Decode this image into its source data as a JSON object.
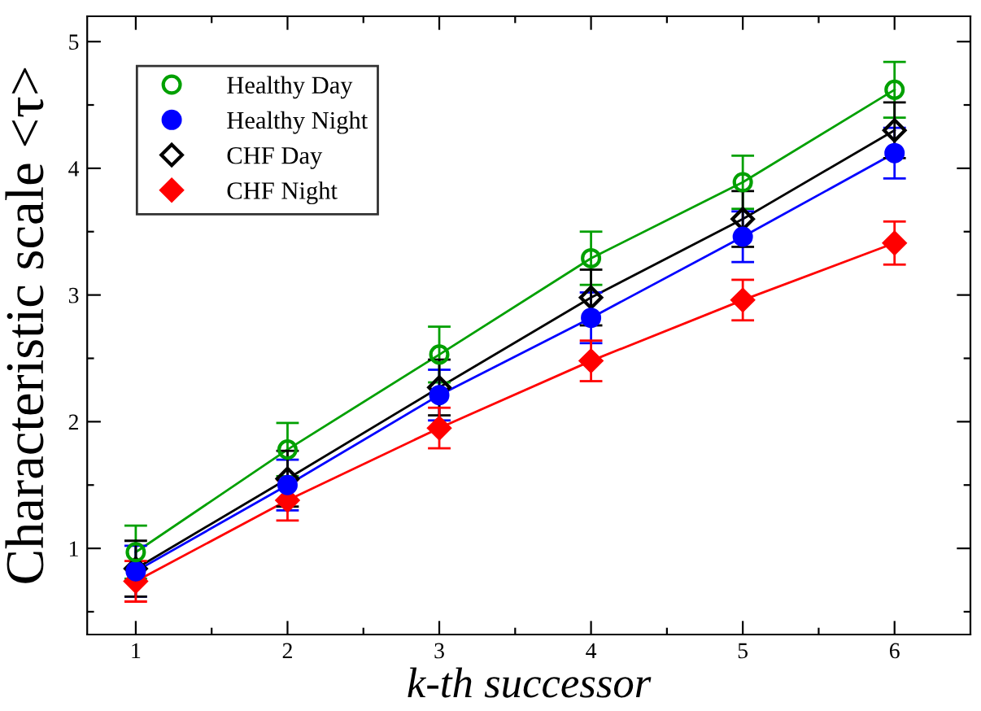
{
  "chart_data": {
    "type": "line",
    "xlabel": "k-th successor",
    "ylabel": "Characteristic scale <τ>",
    "x": [
      1,
      2,
      3,
      4,
      5,
      6
    ],
    "xlim": [
      0.68,
      6.5
    ],
    "ylim": [
      0.32,
      5.2
    ],
    "xticks": [
      1,
      {
        "value": 1.5,
        "label": null
      },
      2,
      {
        "value": 2.5,
        "label": null
      },
      3,
      {
        "value": 3.5,
        "label": null
      },
      4,
      {
        "value": 4.5,
        "label": null
      },
      5,
      {
        "value": 5.5,
        "label": null
      },
      6
    ],
    "yticks": [
      {
        "value": 0.5,
        "label": null
      },
      1,
      {
        "value": 1.5,
        "label": null
      },
      2,
      {
        "value": 2.5,
        "label": null
      },
      3,
      {
        "value": 3.5,
        "label": null
      },
      4,
      {
        "value": 4.5,
        "label": null
      },
      5
    ],
    "legend": "top left",
    "grid": false,
    "line_style": "solid",
    "series": [
      {
        "name": "Healthy Day",
        "color": "#00a000",
        "marker": "circle",
        "values": [
          0.97,
          1.78,
          2.53,
          3.29,
          3.89,
          4.62
        ],
        "errors": [
          0.21,
          0.21,
          0.22,
          0.21,
          0.21,
          0.22
        ]
      },
      {
        "name": "Healthy Night",
        "color": "#0000ff",
        "marker": "circle",
        "values": [
          0.82,
          1.5,
          2.21,
          2.82,
          3.46,
          4.12
        ],
        "errors": [
          0.2,
          0.2,
          0.2,
          0.2,
          0.2,
          0.2
        ]
      },
      {
        "name": "CHF Day",
        "color": "#000000",
        "marker": "diamond",
        "values": [
          0.84,
          1.55,
          2.27,
          2.98,
          3.6,
          4.3
        ],
        "errors": [
          0.22,
          0.22,
          0.22,
          0.22,
          0.22,
          0.22
        ]
      },
      {
        "name": "CHF Night",
        "color": "#ff0000",
        "marker": "diamond",
        "values": [
          0.74,
          1.38,
          1.95,
          2.48,
          2.96,
          3.41
        ],
        "errors": [
          0.16,
          0.16,
          0.16,
          0.16,
          0.16,
          0.17
        ]
      }
    ]
  }
}
